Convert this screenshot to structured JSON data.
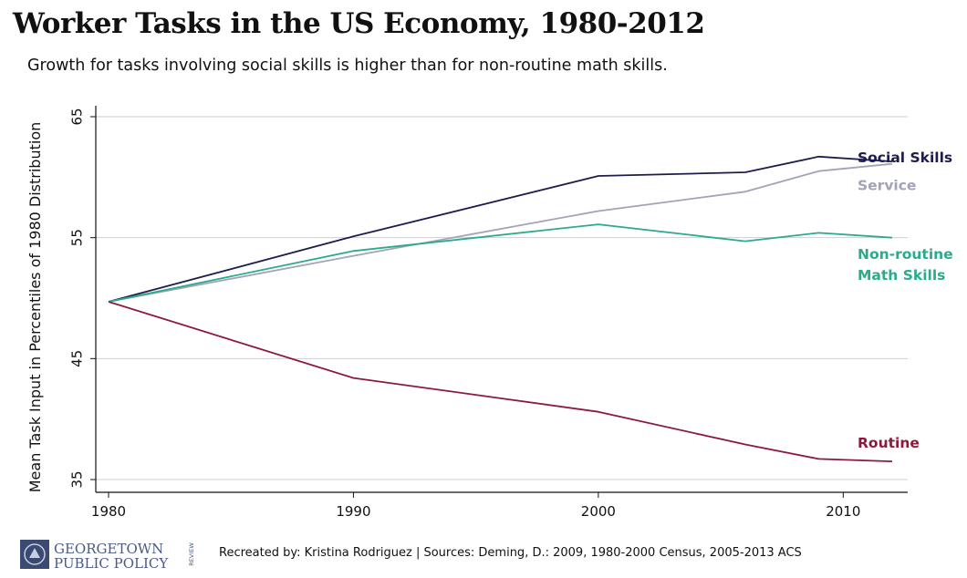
{
  "header": {
    "title": "Worker Tasks in the US Economy, 1980-2012",
    "subtitle": "Growth for tasks involving social skills is higher than for non-routine math skills."
  },
  "chart_data": {
    "type": "line",
    "title": "Worker Tasks in the US Economy, 1980-2012",
    "subtitle": "Growth for tasks involving social skills is higher than for non-routine math skills.",
    "xlabel": "",
    "ylabel": "Mean Task Input in Percentiles of 1980 Distribution",
    "xlim": [
      1980,
      2012
    ],
    "ylim": [
      35,
      65
    ],
    "xticks": [
      1980,
      1990,
      2000,
      2010
    ],
    "yticks": [
      35,
      45,
      55,
      65
    ],
    "grid": true,
    "legend": "inline-right",
    "series": [
      {
        "name": "Social Skills",
        "color": "#1c1c4e",
        "label_lines": [
          "Social Skills"
        ],
        "x": [
          1980,
          1990,
          2000,
          2006,
          2009,
          2012
        ],
        "y": [
          49.7,
          55.1,
          60.1,
          60.4,
          61.7,
          61.3
        ]
      },
      {
        "name": "Service",
        "color": "#a3a3b8",
        "label_lines": [
          "Service"
        ],
        "x": [
          1980,
          1990,
          2000,
          2006,
          2009,
          2012
        ],
        "y": [
          49.7,
          53.5,
          57.2,
          58.8,
          60.5,
          61.1
        ]
      },
      {
        "name": "Non-routine Math Skills",
        "color": "#2bab8c",
        "label_lines": [
          "Non-routine",
          "Math Skills"
        ],
        "x": [
          1980,
          1990,
          2000,
          2006,
          2009,
          2012
        ],
        "y": [
          49.7,
          53.9,
          56.1,
          54.7,
          55.4,
          55.0
        ]
      },
      {
        "name": "Routine",
        "color": "#8b1a3c",
        "label_lines": [
          "Routine"
        ],
        "x": [
          1980,
          1990,
          2000,
          2006,
          2009,
          2012
        ],
        "y": [
          49.7,
          43.4,
          40.6,
          37.9,
          36.7,
          36.5
        ]
      }
    ]
  },
  "footer": {
    "logo_line1": "GEORGETOWN",
    "logo_line2": "PUBLIC POLICY",
    "logo_side": "REVIEW",
    "credit": "Recreated by: Kristina Rodriguez | Sources: Deming, D.: 2009, 1980-2000 Census, 2005-2013 ACS"
  }
}
